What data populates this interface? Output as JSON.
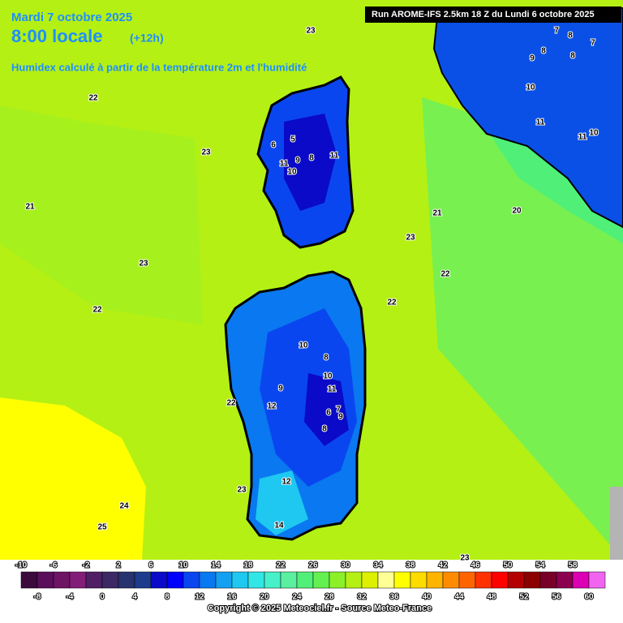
{
  "header": {
    "date": "Mardi 7 octobre 2025",
    "time": "8:00 locale",
    "offset": "(+12h)",
    "subtitle": "Humidex calculé à partir de la température 2m et l'humidité",
    "run": "Run AROME-IFS 2.5km 18 Z du Lundi 6 octobre 2025"
  },
  "contour_labels": [
    "23",
    "22",
    "23",
    "21",
    "23",
    "22",
    "21",
    "20",
    "23",
    "22",
    "22",
    "22",
    "24",
    "25",
    "23",
    "23",
    "14",
    "12",
    "12",
    "9",
    "10",
    "8",
    "10",
    "11",
    "6",
    "7",
    "9",
    "8",
    "5",
    "6",
    "8",
    "9",
    "11",
    "10",
    "11",
    "10",
    "11",
    "10",
    "11",
    "7",
    "8",
    "7",
    "9",
    "8",
    "8"
  ],
  "colorbar": {
    "range": [
      -10,
      62
    ],
    "upper_labels": [
      -10,
      -6,
      -2,
      2,
      6,
      10,
      14,
      18,
      22,
      26,
      30,
      34,
      38,
      42,
      46,
      50,
      54,
      58
    ],
    "lower_labels": [
      -8,
      -4,
      0,
      4,
      8,
      12,
      16,
      20,
      24,
      28,
      32,
      36,
      40,
      44,
      48,
      52,
      56,
      60
    ],
    "colors": [
      "#3c0a3c",
      "#5a0f5a",
      "#6e1464",
      "#821e78",
      "#501e64",
      "#3c2864",
      "#28326e",
      "#1e3c8c",
      "#0a0ac8",
      "#0000ff",
      "#0a46f0",
      "#0a78f0",
      "#14a0f0",
      "#1ec8f0",
      "#32e6e6",
      "#46f0c8",
      "#5af0a0",
      "#50f078",
      "#64f050",
      "#8cf028",
      "#b4f014",
      "#dcf000",
      "#ffff96",
      "#ffff00",
      "#ffdc00",
      "#ffb400",
      "#ff8c00",
      "#ff6400",
      "#ff3200",
      "#ff0000",
      "#b40000",
      "#8c0000",
      "#780028",
      "#8c0050",
      "#dc00b4",
      "#f064f0"
    ]
  },
  "footer": {
    "copyright": "Copyright © 2025 Meteociel.fr - Source Meteo-France"
  }
}
